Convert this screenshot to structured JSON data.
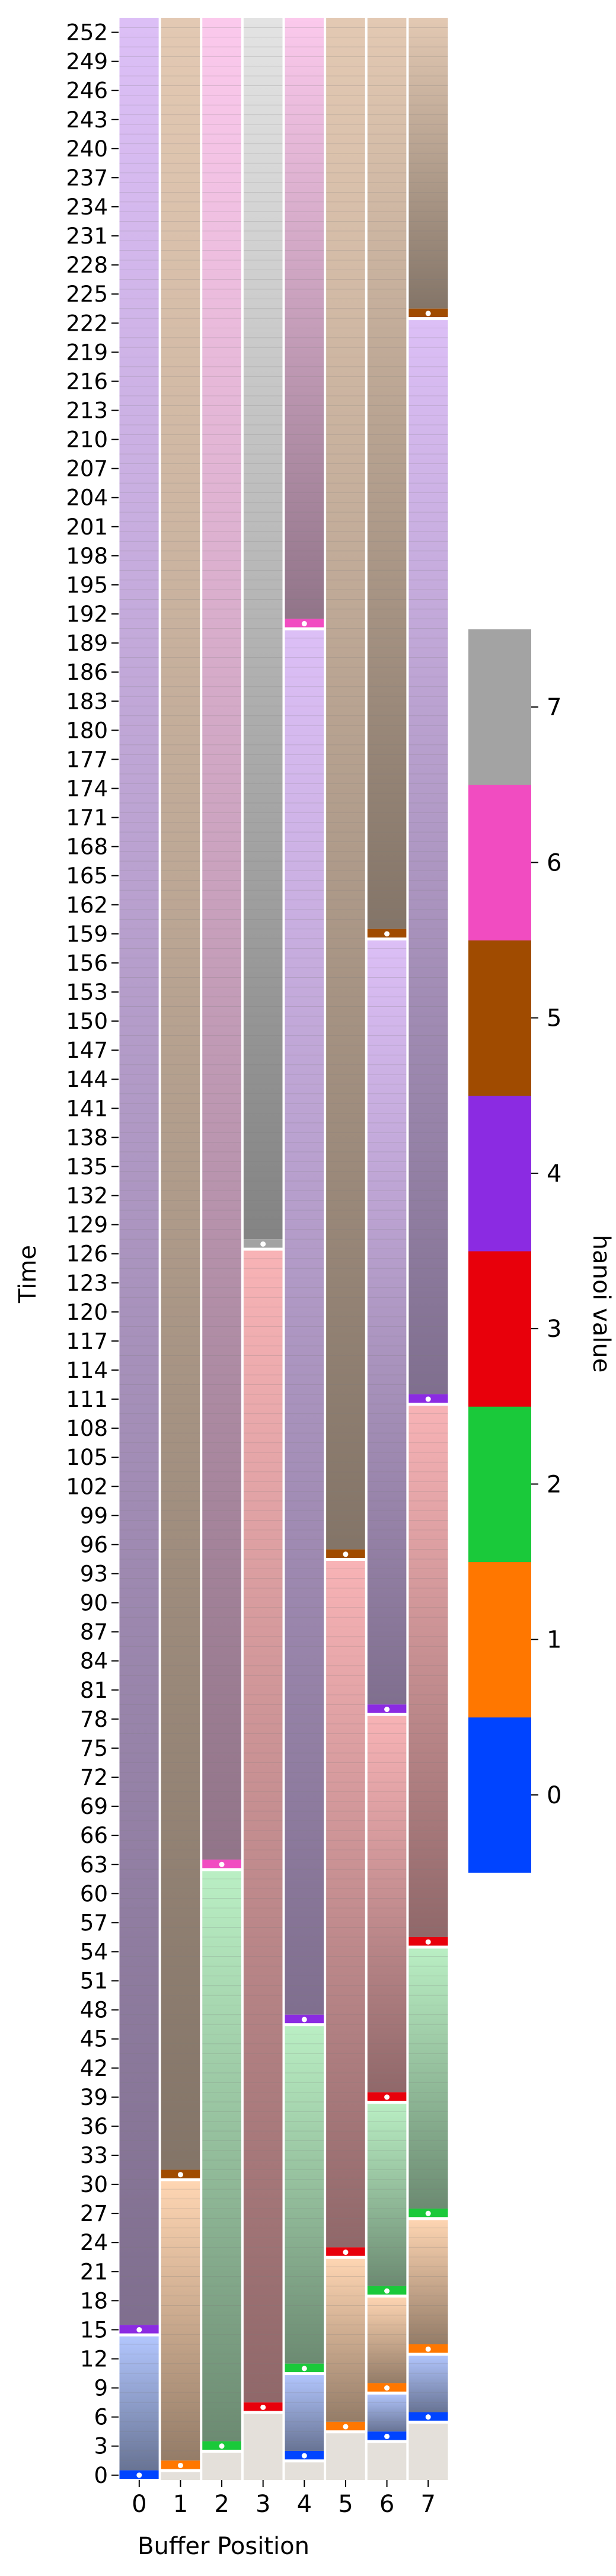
{
  "chart_data": {
    "type": "heatmap",
    "title": "",
    "xlabel": "Buffer Position",
    "ylabel": "Time",
    "x_categories": [
      "0",
      "1",
      "2",
      "3",
      "4",
      "5",
      "6",
      "7"
    ],
    "y_tick_labels": [
      "0",
      "3",
      "6",
      "9",
      "12",
      "15",
      "18",
      "21",
      "24",
      "27",
      "30",
      "33",
      "36",
      "39",
      "42",
      "45",
      "48",
      "51",
      "54",
      "57",
      "60",
      "63",
      "66",
      "69",
      "72",
      "75",
      "78",
      "81",
      "84",
      "87",
      "90",
      "93",
      "96",
      "99",
      "102",
      "105",
      "108",
      "111",
      "114",
      "117",
      "120",
      "123",
      "126",
      "129",
      "132",
      "135",
      "138",
      "141",
      "144",
      "147",
      "150",
      "153",
      "156",
      "159",
      "162",
      "165",
      "168",
      "171",
      "174",
      "177",
      "180",
      "183",
      "186",
      "189",
      "192",
      "195",
      "198",
      "201",
      "204",
      "207",
      "210",
      "213",
      "216",
      "219",
      "222",
      "225",
      "228",
      "231",
      "234",
      "237",
      "240",
      "243",
      "246",
      "249",
      "252"
    ],
    "ylim": [
      0,
      254
    ],
    "colorbar": {
      "label": "hanoi value",
      "ticks": [
        0,
        1,
        2,
        3,
        4,
        5,
        6,
        7
      ],
      "colors": [
        "#0044ff",
        "#ff7700",
        "#1ac93a",
        "#e8000b",
        "#8b2be2",
        "#a04b00",
        "#f14cc1",
        "#a3a3a3"
      ]
    },
    "columns": [
      {
        "position": "0",
        "initial_value": null,
        "writes": [
          {
            "time": 0,
            "value": 0
          },
          {
            "time": 15,
            "value": 4
          }
        ]
      },
      {
        "position": "1",
        "initial_value": null,
        "writes": [
          {
            "time": 1,
            "value": 1
          },
          {
            "time": 31,
            "value": 5
          }
        ]
      },
      {
        "position": "2",
        "initial_value": null,
        "writes": [
          {
            "time": 3,
            "value": 2
          },
          {
            "time": 63,
            "value": 6
          }
        ]
      },
      {
        "position": "3",
        "initial_value": null,
        "writes": [
          {
            "time": 7,
            "value": 3
          },
          {
            "time": 127,
            "value": 7
          }
        ]
      },
      {
        "position": "4",
        "initial_value": null,
        "writes": [
          {
            "time": 2,
            "value": 0
          },
          {
            "time": 11,
            "value": 2
          },
          {
            "time": 47,
            "value": 4
          },
          {
            "time": 191,
            "value": 6
          }
        ]
      },
      {
        "position": "5",
        "initial_value": null,
        "writes": [
          {
            "time": 5,
            "value": 1
          },
          {
            "time": 23,
            "value": 3
          },
          {
            "time": 95,
            "value": 5
          }
        ]
      },
      {
        "position": "6",
        "initial_value": null,
        "writes": [
          {
            "time": 4,
            "value": 0
          },
          {
            "time": 9,
            "value": 1
          },
          {
            "time": 19,
            "value": 2
          },
          {
            "time": 39,
            "value": 3
          },
          {
            "time": 79,
            "value": 4
          },
          {
            "time": 159,
            "value": 5
          }
        ]
      },
      {
        "position": "7",
        "initial_value": null,
        "writes": [
          {
            "time": 6,
            "value": 0
          },
          {
            "time": 13,
            "value": 1
          },
          {
            "time": 27,
            "value": 2
          },
          {
            "time": 55,
            "value": 3
          },
          {
            "time": 111,
            "value": 4
          },
          {
            "time": 223,
            "value": 5
          }
        ]
      }
    ]
  }
}
